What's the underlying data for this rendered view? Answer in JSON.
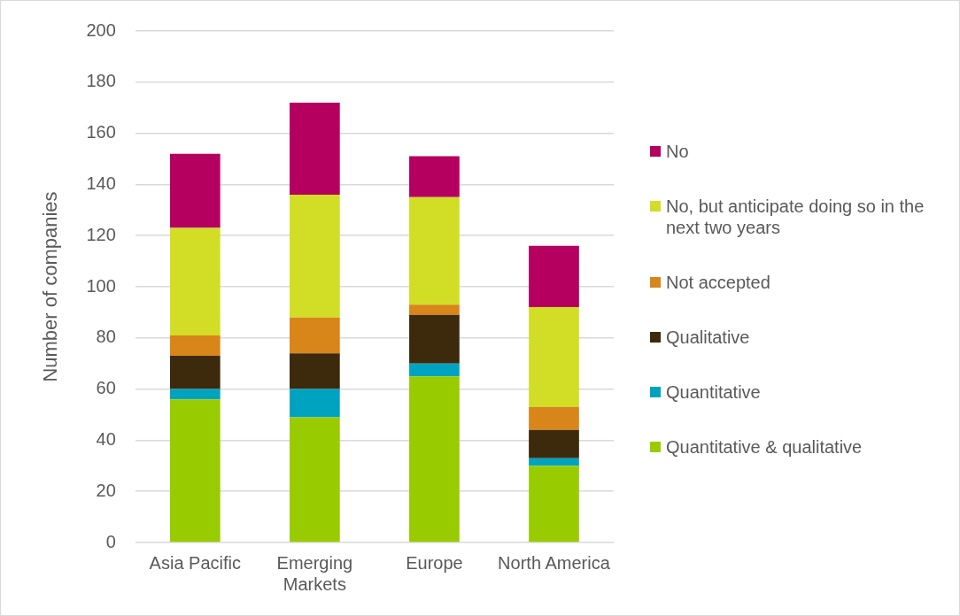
{
  "chart_data": {
    "type": "bar",
    "stacked": true,
    "ylabel": "Number of companies",
    "categories": [
      "Asia Pacific",
      "Emerging Markets",
      "Europe",
      "North America"
    ],
    "series": [
      {
        "name": "Quantitative & qualitative",
        "color": "#99cc00",
        "values": [
          56,
          49,
          65,
          30
        ]
      },
      {
        "name": "Quantitative",
        "color": "#00a3bf",
        "values": [
          4,
          11,
          5,
          3
        ]
      },
      {
        "name": "Qualitative",
        "color": "#3d2a0c",
        "values": [
          13,
          14,
          19,
          11
        ]
      },
      {
        "name": "Not accepted",
        "color": "#d8861a",
        "values": [
          8,
          14,
          4,
          9
        ]
      },
      {
        "name": "No, but anticipate doing so in the next two years",
        "color": "#d2de26",
        "values": [
          42,
          48,
          42,
          39
        ]
      },
      {
        "name": "No",
        "color": "#b5005f",
        "values": [
          29,
          36,
          16,
          24
        ]
      }
    ],
    "ylim": [
      0,
      200
    ],
    "yticks": [
      0,
      20,
      40,
      60,
      80,
      100,
      120,
      140,
      160,
      180,
      200
    ],
    "grid": "y",
    "legend": "right"
  }
}
